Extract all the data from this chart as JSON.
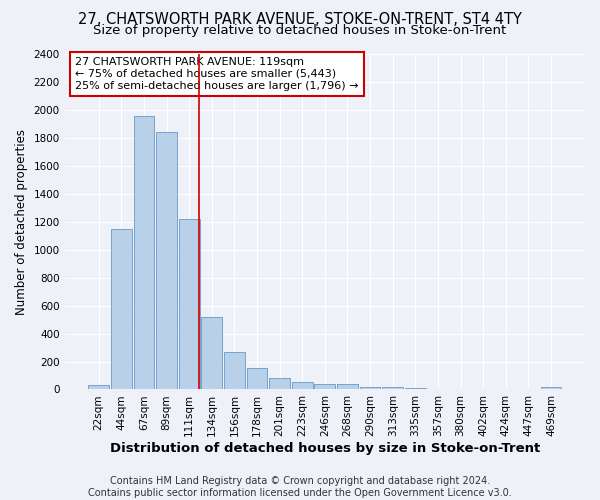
{
  "title": "27, CHATSWORTH PARK AVENUE, STOKE-ON-TRENT, ST4 4TY",
  "subtitle": "Size of property relative to detached houses in Stoke-on-Trent",
  "xlabel": "Distribution of detached houses by size in Stoke-on-Trent",
  "ylabel": "Number of detached properties",
  "categories": [
    "22sqm",
    "44sqm",
    "67sqm",
    "89sqm",
    "111sqm",
    "134sqm",
    "156sqm",
    "178sqm",
    "201sqm",
    "223sqm",
    "246sqm",
    "268sqm",
    "290sqm",
    "313sqm",
    "335sqm",
    "357sqm",
    "380sqm",
    "402sqm",
    "424sqm",
    "447sqm",
    "469sqm"
  ],
  "values": [
    30,
    1150,
    1960,
    1840,
    1220,
    520,
    265,
    150,
    80,
    50,
    40,
    40,
    20,
    15,
    8,
    5,
    5,
    3,
    3,
    3,
    18
  ],
  "bar_color": "#b8d0e8",
  "bar_edge_color": "#6699cc",
  "property_line_x": 4.43,
  "property_sqm": 119,
  "annotation_line1": "27 CHATSWORTH PARK AVENUE: 119sqm",
  "annotation_line2": "← 75% of detached houses are smaller (5,443)",
  "annotation_line3": "25% of semi-detached houses are larger (1,796) →",
  "annotation_box_color": "#ffffff",
  "annotation_box_edge": "#cc0000",
  "vline_color": "#cc0000",
  "footer1": "Contains HM Land Registry data © Crown copyright and database right 2024.",
  "footer2": "Contains public sector information licensed under the Open Government Licence v3.0.",
  "ylim": [
    0,
    2400
  ],
  "yticks": [
    0,
    200,
    400,
    600,
    800,
    1000,
    1200,
    1400,
    1600,
    1800,
    2000,
    2200,
    2400
  ],
  "title_fontsize": 10.5,
  "subtitle_fontsize": 9.5,
  "xlabel_fontsize": 9.5,
  "ylabel_fontsize": 8.5,
  "tick_fontsize": 7.5,
  "annotation_fontsize": 8,
  "footer_fontsize": 7,
  "background_color": "#eef2f8",
  "grid_color": "#ffffff"
}
